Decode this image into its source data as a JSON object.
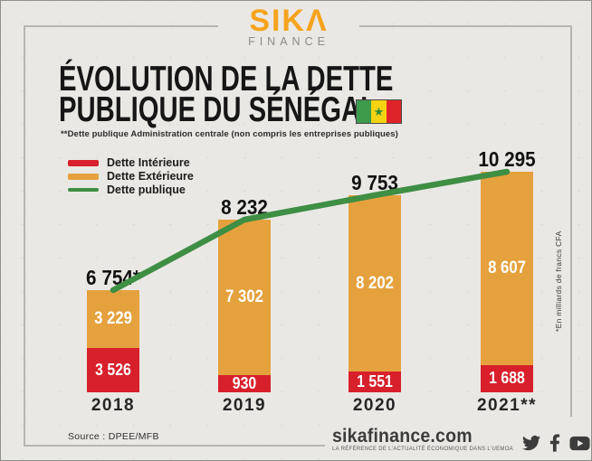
{
  "brand": {
    "logo_text": "SIKΛ",
    "logo_sub": "FINANCE"
  },
  "title": {
    "line1": "ÉVOLUTION DE LA DETTE",
    "line2": "PUBLIQUE DU SÉNÉGAL",
    "subtitle": "**Dette publique Administration centrale (non compris les entreprises publiques)"
  },
  "flag": {
    "green": "#3D9B4C",
    "yellow": "#F4D313",
    "red": "#DF2429",
    "star_color": "#2f8a3a"
  },
  "legend": [
    {
      "label": "Dette Intérieure",
      "color": "#D7202B",
      "kind": "bar"
    },
    {
      "label": "Dette Extérieure",
      "color": "#E5A13D",
      "kind": "bar"
    },
    {
      "label": "Dette publique",
      "color": "#3E8E44",
      "kind": "line"
    }
  ],
  "chart_data": {
    "type": "bar",
    "subtype": "stacked-bars-with-total-line",
    "categories": [
      "2018",
      "2019",
      "2020",
      "2021**"
    ],
    "series": [
      {
        "name": "Dette Intérieure",
        "type": "bar",
        "color": "#D7202B",
        "values": [
          3526,
          930,
          1551,
          1688
        ],
        "labels": [
          "3 526",
          "930",
          "1 551",
          "1 688"
        ]
      },
      {
        "name": "Dette Extérieure",
        "type": "bar",
        "color": "#E5A13D",
        "values": [
          3229,
          7302,
          8202,
          8607
        ],
        "labels": [
          "3 229",
          "7 302",
          "8 202",
          "8 607"
        ]
      },
      {
        "name": "Dette publique",
        "type": "line",
        "color": "#3E8E44",
        "values": [
          6754,
          8232,
          9753,
          10295
        ],
        "labels": [
          "6 754*",
          "8 232",
          "9 753",
          "10 295"
        ]
      }
    ],
    "unit_note": "*En milliards de francs CFA",
    "ylim": [
      0,
      10500
    ],
    "grid": false,
    "legend_position": "top-left"
  },
  "source": {
    "text": "Source : DPEE/MFB"
  },
  "footer": {
    "site": "sikafinance.com",
    "tagline": "LA RÉFÉRENCE DE L'ACTUALITÉ ÉCONOMIQUE DANS L'UEMOA",
    "icons": [
      "twitter-icon",
      "facebook-icon",
      "youtube-icon",
      "instagram-icon"
    ]
  }
}
